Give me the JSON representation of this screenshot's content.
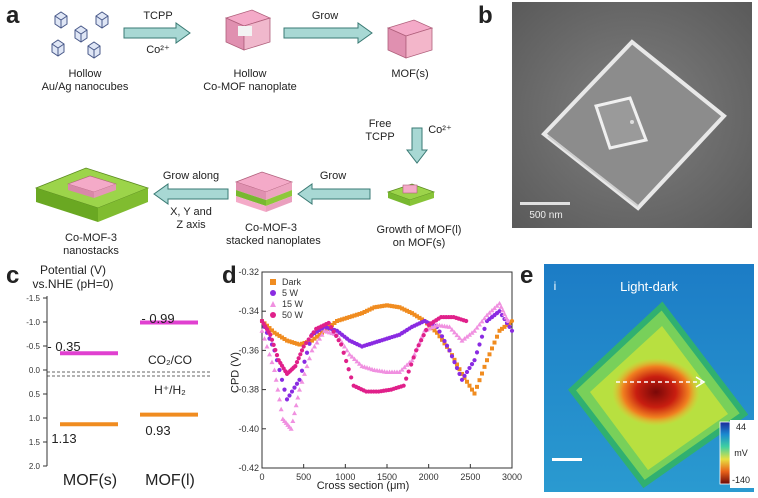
{
  "panel_a": {
    "label": "a",
    "step1_reagent": "TCPP",
    "step1_ion": "Co²⁺",
    "step2_label": "Grow",
    "step3_reagent_line1": "Free",
    "step3_reagent_line2": "TCPP",
    "step3_ion": "Co²⁺",
    "step4_label": "Grow",
    "step5_line1": "Grow along",
    "step5_line2": "X, Y and",
    "step5_line3": "Z axis",
    "nanocubes_line1": "Hollow",
    "nanocubes_line2": "Au/Ag nanocubes",
    "nanoplate_line1": "Hollow",
    "nanoplate_line2": "Co-MOF nanoplate",
    "mofs": "MOF(s)",
    "growth_line1": "Growth of MOF(l)",
    "growth_line2": "on MOF(s)",
    "stacked_line1": "Co-MOF-3",
    "stacked_line2": "stacked nanoplates",
    "nanostacks_line1": "Co-MOF-3",
    "nanostacks_line2": "nanostacks"
  },
  "panel_b": {
    "label": "b",
    "scale_bar": "500 nm"
  },
  "panel_c": {
    "label": "c",
    "title_line1": "Potential (V)",
    "title_line2": "vs.NHE (pH=0)",
    "ticks": [
      "-1.5",
      "-1.0",
      "-0.5",
      "0.0",
      "0.5",
      "1.0",
      "1.5",
      "2.0"
    ],
    "mofs_cb": "- 0.35",
    "mofs_vb": "1.13",
    "mofl_cb": "- 0.99",
    "mofl_vb": "0.93",
    "co2_label": "CO₂/CO",
    "h2_label": "H⁺/H₂",
    "x_label_1": "MOF(s)",
    "x_label_2": "MOF(l)",
    "colors": {
      "cb": "#e040d0",
      "vb": "#f08c20"
    }
  },
  "panel_d": {
    "label": "d"
  },
  "panel_e": {
    "label": "e",
    "roman": "i",
    "title": "Light-dark",
    "cbar_max": "44",
    "cbar_unit": "mV",
    "cbar_min": "-140"
  },
  "chart_data": {
    "type": "scatter",
    "xlabel": "Cross section (μm)",
    "ylabel": "CPD (V)",
    "xlim": [
      0,
      3000
    ],
    "ylim": [
      -0.42,
      -0.32
    ],
    "xticks": [
      0,
      500,
      1000,
      1500,
      2000,
      2500,
      3000
    ],
    "yticks": [
      -0.32,
      -0.34,
      -0.36,
      -0.38,
      -0.4,
      -0.42
    ],
    "legend_position": "top-left",
    "series": [
      {
        "name": "Dark",
        "color": "#f08c20",
        "x": [
          0,
          150,
          300,
          450,
          600,
          750,
          900,
          1050,
          1200,
          1350,
          1500,
          1650,
          1800,
          1950,
          2100,
          2250,
          2400,
          2550,
          2700,
          2850,
          3000
        ],
        "y": [
          -0.345,
          -0.351,
          -0.355,
          -0.357,
          -0.355,
          -0.35,
          -0.345,
          -0.343,
          -0.341,
          -0.338,
          -0.337,
          -0.338,
          -0.341,
          -0.345,
          -0.351,
          -0.36,
          -0.372,
          -0.382,
          -0.365,
          -0.35,
          -0.345
        ]
      },
      {
        "name": "5 W",
        "color": "#8a2be2",
        "x": [
          0,
          150,
          300,
          450,
          600,
          750,
          900,
          1050,
          1200,
          1350,
          1500,
          1650,
          1800,
          1950,
          2100,
          2250,
          2400,
          2550,
          2700,
          2850,
          3000
        ],
        "y": [
          -0.345,
          -0.36,
          -0.385,
          -0.375,
          -0.352,
          -0.348,
          -0.35,
          -0.355,
          -0.358,
          -0.356,
          -0.354,
          -0.352,
          -0.348,
          -0.345,
          -0.348,
          -0.36,
          -0.375,
          -0.365,
          -0.345,
          -0.34,
          -0.35
        ]
      },
      {
        "name": "15 W",
        "color": "#f090e0",
        "x": [
          0,
          150,
          250,
          350,
          450,
          600,
          750,
          900,
          1050,
          1200,
          1350,
          1500,
          1650,
          1800,
          1950,
          2100,
          2250,
          2400,
          2550,
          2700,
          2850,
          2950
        ],
        "y": [
          -0.35,
          -0.37,
          -0.395,
          -0.4,
          -0.38,
          -0.36,
          -0.35,
          -0.352,
          -0.362,
          -0.368,
          -0.37,
          -0.371,
          -0.371,
          -0.365,
          -0.35,
          -0.347,
          -0.348,
          -0.355,
          -0.35,
          -0.342,
          -0.336,
          -0.345
        ]
      },
      {
        "name": "50 W",
        "color": "#e0208a",
        "x": [
          0,
          100,
          200,
          300,
          400,
          500,
          650,
          800,
          950,
          1100,
          1250,
          1400,
          1550,
          1700,
          1850,
          2000,
          2150,
          2300,
          2450
        ],
        "y": [
          -0.345,
          -0.352,
          -0.365,
          -0.372,
          -0.368,
          -0.358,
          -0.349,
          -0.346,
          -0.357,
          -0.378,
          -0.381,
          -0.381,
          -0.38,
          -0.378,
          -0.36,
          -0.347,
          -0.343,
          -0.343,
          -0.345
        ]
      }
    ]
  }
}
